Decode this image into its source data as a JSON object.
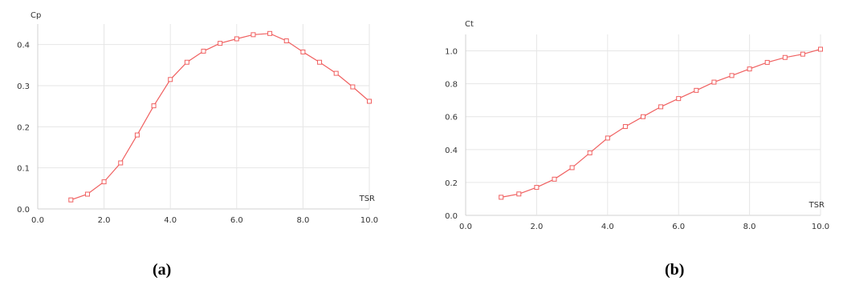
{
  "chart_data": [
    {
      "type": "line",
      "ylabel": "Cp",
      "xlabel": "TSR",
      "xlim": [
        0,
        10
      ],
      "ylim": [
        0,
        0.45
      ],
      "xticks": [
        "0.0",
        "2.0",
        "4.0",
        "6.0",
        "8.0",
        "10.0"
      ],
      "yticks": [
        "0.0",
        "0.1",
        "0.2",
        "0.3",
        "0.4"
      ],
      "grid": true,
      "line_color": "#f06060",
      "series": [
        {
          "x": [
            1.0,
            1.5,
            2.0,
            2.5,
            3.0,
            3.5,
            4.0,
            4.5,
            5.0,
            5.5,
            6.0,
            6.5,
            7.0,
            7.5,
            8.0,
            8.5,
            9.0,
            9.5,
            10.0
          ],
          "values": [
            0.022,
            0.036,
            0.066,
            0.112,
            0.18,
            0.251,
            0.315,
            0.357,
            0.384,
            0.403,
            0.414,
            0.424,
            0.427,
            0.409,
            0.382,
            0.357,
            0.33,
            0.297,
            0.262
          ]
        }
      ]
    },
    {
      "type": "line",
      "ylabel": "Ct",
      "xlabel": "TSR",
      "xlim": [
        0,
        10
      ],
      "ylim": [
        0,
        1.1
      ],
      "xticks": [
        "0.0",
        "2.0",
        "4.0",
        "6.0",
        "8.0",
        "10.0"
      ],
      "yticks": [
        "0.0",
        "0.2",
        "0.4",
        "0.6",
        "0.8",
        "1.0"
      ],
      "grid": true,
      "line_color": "#f06060",
      "series": [
        {
          "x": [
            1.0,
            1.5,
            2.0,
            2.5,
            3.0,
            3.5,
            4.0,
            4.5,
            5.0,
            5.5,
            6.0,
            6.5,
            7.0,
            7.5,
            8.0,
            8.5,
            9.0,
            9.5,
            10.0
          ],
          "values": [
            0.11,
            0.13,
            0.17,
            0.22,
            0.29,
            0.38,
            0.47,
            0.54,
            0.6,
            0.66,
            0.71,
            0.76,
            0.81,
            0.85,
            0.89,
            0.93,
            0.96,
            0.98,
            1.01
          ]
        }
      ]
    }
  ],
  "captions": {
    "a": "(a)",
    "b": "(b)"
  }
}
